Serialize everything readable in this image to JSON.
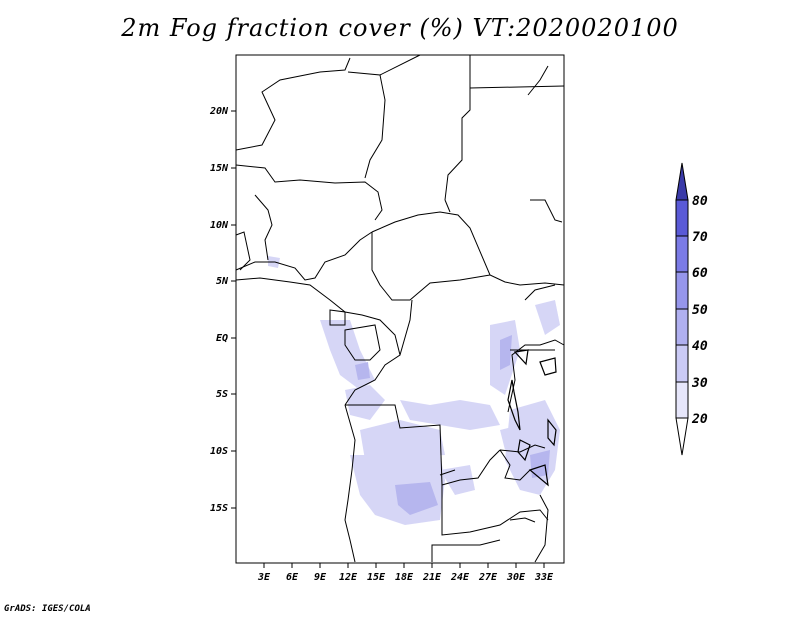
{
  "title": "2m Fog fraction cover (%) VT:2020020100",
  "credit": "GrADS: IGES/COLA",
  "lat_ticks": [
    "20N",
    "15N",
    "10N",
    "5N",
    "EQ",
    "5S",
    "10S",
    "15S"
  ],
  "lon_ticks": [
    "3E",
    "6E",
    "9E",
    "12E",
    "15E",
    "18E",
    "21E",
    "24E",
    "27E",
    "30E",
    "33E"
  ],
  "colorbar": {
    "levels": [
      "20",
      "30",
      "40",
      "50",
      "60",
      "70",
      "80"
    ],
    "colors": [
      "#e6e6fa",
      "#cacaf5",
      "#b0b0f0",
      "#9696eb",
      "#7b7be6",
      "#5a5ad7",
      "#3a3aa8"
    ]
  },
  "colors": {
    "fog_light": "#d6d6f8",
    "fog_mid": "#b8b8f0",
    "border": "#000000"
  }
}
